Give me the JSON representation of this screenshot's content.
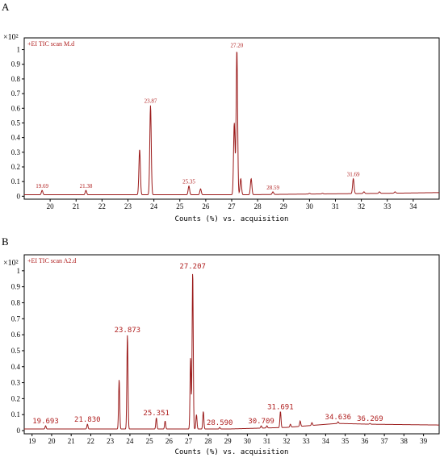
{
  "chart_data": [
    {
      "panel": "A",
      "type": "line",
      "scale_label": "×10²",
      "trace_name": "+EI TIC scan M.d",
      "xlabel": "Counts (%) vs. acquisition",
      "xlim": [
        19.0,
        35.0
      ],
      "ylim": [
        -0.02,
        1.08
      ],
      "xticks": [
        20,
        21,
        22,
        23,
        24,
        25,
        26,
        27,
        28,
        29,
        30,
        31,
        32,
        33,
        34
      ],
      "yticks": [
        {
          "value": 0,
          "label": "0"
        },
        {
          "value": 0.1,
          "label": "0.1"
        },
        {
          "value": 0.2,
          "label": "0.2"
        },
        {
          "value": 0.3,
          "label": "0.3"
        },
        {
          "value": 0.4,
          "label": "0.4"
        },
        {
          "value": 0.5,
          "label": "0.5"
        },
        {
          "value": 0.6,
          "label": "0.6"
        },
        {
          "value": 0.7,
          "label": "0.7"
        },
        {
          "value": 0.8,
          "label": "0.8"
        },
        {
          "value": 0.9,
          "label": "0.9"
        },
        {
          "value": 1.0,
          "label": "1"
        }
      ],
      "baseline": [
        [
          19.0,
          0.01
        ],
        [
          27.5,
          0.01
        ],
        [
          30.0,
          0.015
        ],
        [
          33.0,
          0.02
        ],
        [
          35.0,
          0.025
        ]
      ],
      "peaks": [
        {
          "x": 19.69,
          "y": 0.04,
          "label": "19.69"
        },
        {
          "x": 21.38,
          "y": 0.04,
          "label": "21.38"
        },
        {
          "x": 23.45,
          "y": 0.32,
          "label": ""
        },
        {
          "x": 23.87,
          "y": 0.62,
          "label": "23.87"
        },
        {
          "x": 25.35,
          "y": 0.07,
          "label": "25.35"
        },
        {
          "x": 25.8,
          "y": 0.05,
          "label": ""
        },
        {
          "x": 27.1,
          "y": 0.5,
          "label": ""
        },
        {
          "x": 27.2,
          "y": 1.0,
          "label": "27.20"
        },
        {
          "x": 27.35,
          "y": 0.12,
          "label": ""
        },
        {
          "x": 27.75,
          "y": 0.12,
          "label": ""
        },
        {
          "x": 28.59,
          "y": 0.03,
          "label": "28.59"
        },
        {
          "x": 30.0,
          "y": 0.02,
          "label": ""
        },
        {
          "x": 30.5,
          "y": 0.02,
          "label": ""
        },
        {
          "x": 31.69,
          "y": 0.12,
          "label": "31.69"
        },
        {
          "x": 32.1,
          "y": 0.03,
          "label": ""
        },
        {
          "x": 32.7,
          "y": 0.03,
          "label": ""
        },
        {
          "x": 33.3,
          "y": 0.03,
          "label": ""
        }
      ]
    },
    {
      "panel": "B",
      "type": "line",
      "scale_label": "×10²",
      "trace_name": "+EI TIC scan A2.d",
      "xlabel": "Counts (%) vs. acquisition",
      "xlim": [
        18.6,
        39.8
      ],
      "ylim": [
        -0.02,
        1.1
      ],
      "xticks": [
        19,
        20,
        21,
        22,
        23,
        24,
        25,
        26,
        27,
        28,
        29,
        30,
        31,
        32,
        33,
        34,
        35,
        36,
        37,
        38,
        39
      ],
      "yticks": [
        {
          "value": 0,
          "label": "0"
        },
        {
          "value": 0.1,
          "label": "0.1"
        },
        {
          "value": 0.2,
          "label": "0.2"
        },
        {
          "value": 0.3,
          "label": "0.3"
        },
        {
          "value": 0.4,
          "label": "0.4"
        },
        {
          "value": 0.5,
          "label": "0.5"
        },
        {
          "value": 0.6,
          "label": "0.6"
        },
        {
          "value": 0.7,
          "label": "0.7"
        },
        {
          "value": 0.8,
          "label": "0.8"
        },
        {
          "value": 0.9,
          "label": "0.9"
        },
        {
          "value": 1.0,
          "label": "1"
        }
      ],
      "baseline": [
        [
          18.6,
          0.01
        ],
        [
          29.0,
          0.01
        ],
        [
          32.0,
          0.02
        ],
        [
          34.6,
          0.045
        ],
        [
          36.3,
          0.04
        ],
        [
          39.8,
          0.035
        ]
      ],
      "peaks": [
        {
          "x": 19.693,
          "y": 0.03,
          "label": "19.693"
        },
        {
          "x": 21.83,
          "y": 0.04,
          "label": "21.830"
        },
        {
          "x": 23.45,
          "y": 0.32,
          "label": ""
        },
        {
          "x": 23.873,
          "y": 0.6,
          "label": "23.873"
        },
        {
          "x": 25.351,
          "y": 0.08,
          "label": "25.351"
        },
        {
          "x": 25.8,
          "y": 0.06,
          "label": ""
        },
        {
          "x": 27.1,
          "y": 0.46,
          "label": ""
        },
        {
          "x": 27.207,
          "y": 1.0,
          "label": "27.207"
        },
        {
          "x": 27.4,
          "y": 0.1,
          "label": ""
        },
        {
          "x": 27.75,
          "y": 0.12,
          "label": ""
        },
        {
          "x": 28.59,
          "y": 0.02,
          "label": "28.590"
        },
        {
          "x": 30.709,
          "y": 0.03,
          "label": "30.709"
        },
        {
          "x": 31.0,
          "y": 0.03,
          "label": ""
        },
        {
          "x": 31.691,
          "y": 0.12,
          "label": "31.691"
        },
        {
          "x": 32.2,
          "y": 0.04,
          "label": ""
        },
        {
          "x": 32.7,
          "y": 0.06,
          "label": ""
        },
        {
          "x": 33.3,
          "y": 0.05,
          "label": ""
        },
        {
          "x": 34.636,
          "y": 0.055,
          "label": "34.636"
        },
        {
          "x": 36.269,
          "y": 0.045,
          "label": "36.269"
        }
      ]
    }
  ]
}
